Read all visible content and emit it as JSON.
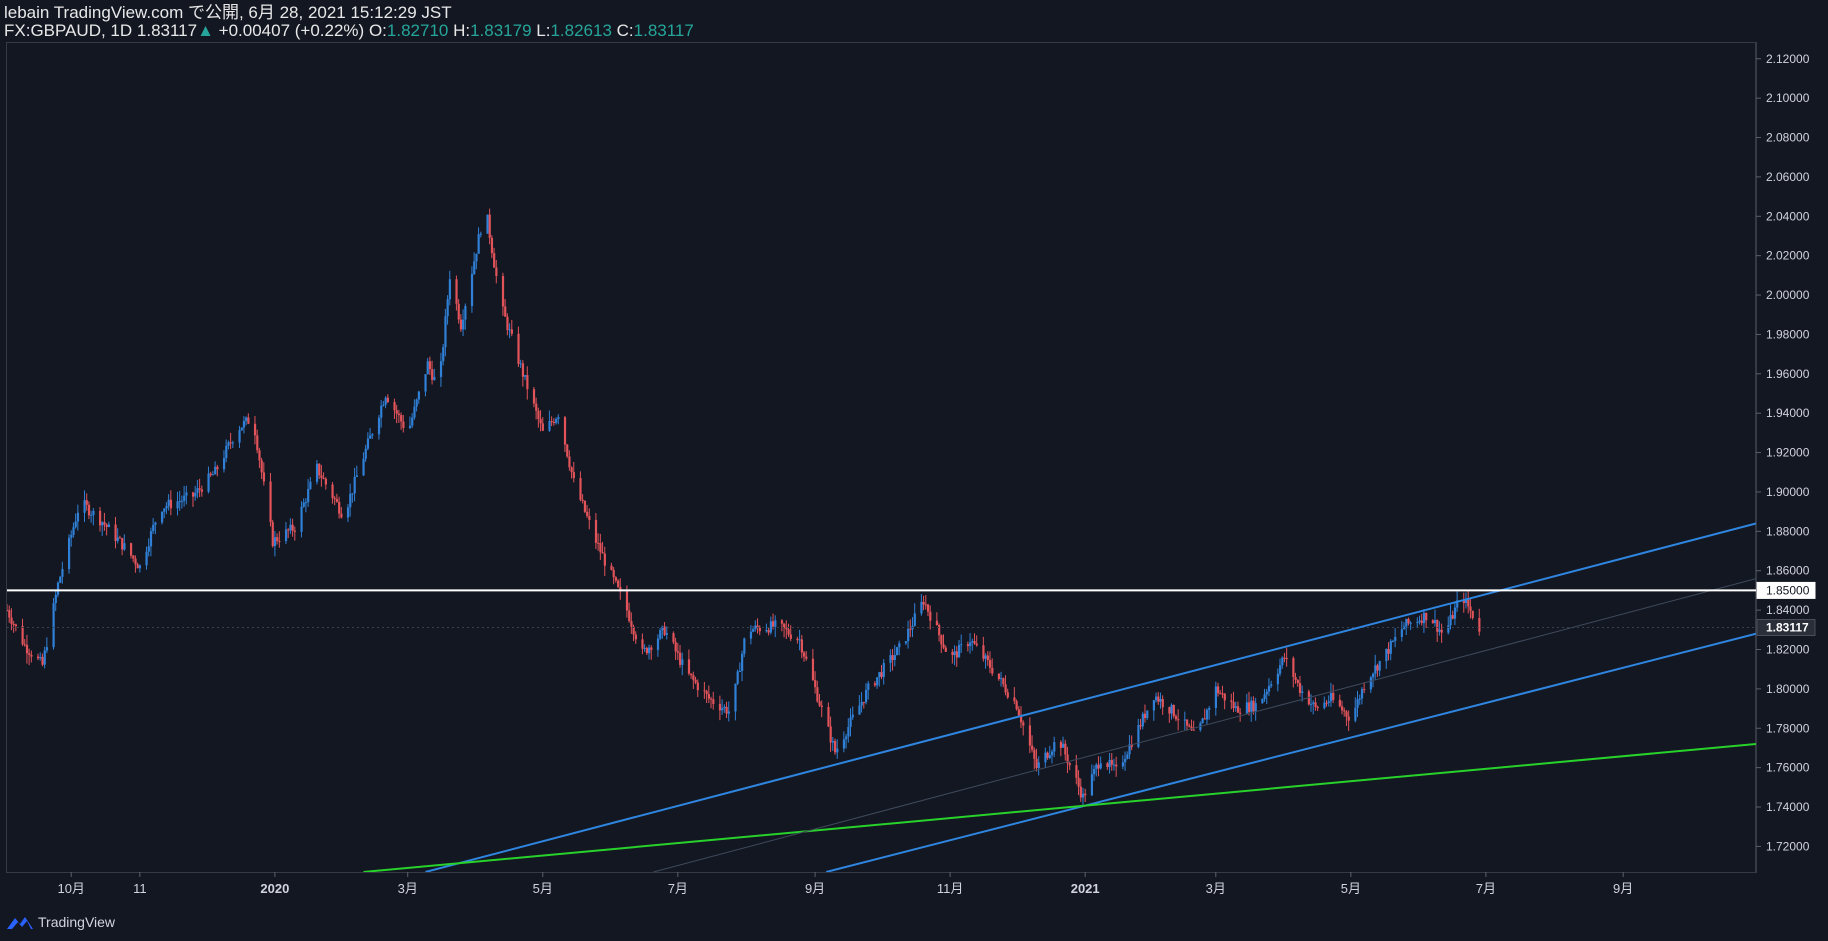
{
  "header": {
    "line1": "lebain TradingView.com で公開, 6月 28, 2021 15:12:29 JST",
    "symbol": "FX:GBPAUD, 1D",
    "last": "1.83117",
    "change_arrow": "▲",
    "change": "+0.00407 (+0.22%)",
    "o_label": "O:",
    "o": "1.82710",
    "h_label": "H:",
    "h": "1.83179",
    "l_label": "L:",
    "l": "1.82613",
    "c_label": "C:",
    "c": "1.83117"
  },
  "footer": {
    "brand": "TradingView",
    "logo_icon": "tradingview-logo-icon"
  },
  "colors": {
    "background": "#131722",
    "up": "#2f80d6",
    "down": "#e2535a",
    "channel": "#2f86e0",
    "support": "#27d22a",
    "level": "#ffffff",
    "grid": "#363a45",
    "text": "#d1d4dc",
    "value_green": "#26a69a"
  },
  "chart_data": {
    "type": "candlestick",
    "symbol": "GBPAUD",
    "interval": "1D",
    "title": "",
    "y_axis": {
      "range": [
        1.707,
        2.128
      ],
      "ticks": [
        "2.12000",
        "2.10000",
        "2.08000",
        "2.06000",
        "2.04000",
        "2.02000",
        "2.00000",
        "1.98000",
        "1.96000",
        "1.94000",
        "1.92000",
        "1.90000",
        "1.88000",
        "1.86000",
        "1.84000",
        "1.82000",
        "1.80000",
        "1.78000",
        "1.76000",
        "1.74000",
        "1.72000"
      ],
      "price_labels": [
        {
          "value": 1.85,
          "label": "1.85000",
          "style": "horizontal-level"
        },
        {
          "value": 1.83117,
          "label": "1.83117",
          "style": "last-price"
        }
      ]
    },
    "x_axis": {
      "range": [
        "2019-09-02",
        "2021-10-31"
      ],
      "ticks": [
        {
          "date": "2019-10-01",
          "label": "10月"
        },
        {
          "date": "2019-11-01",
          "label": "11"
        },
        {
          "date": "2020-01-01",
          "label": "2020"
        },
        {
          "date": "2020-03-01",
          "label": "3月"
        },
        {
          "date": "2020-05-01",
          "label": "5月"
        },
        {
          "date": "2020-07-01",
          "label": "7月"
        },
        {
          "date": "2020-09-01",
          "label": "9月"
        },
        {
          "date": "2020-11-01",
          "label": "11月"
        },
        {
          "date": "2021-01-01",
          "label": "2021"
        },
        {
          "date": "2021-03-01",
          "label": "3月"
        },
        {
          "date": "2021-05-01",
          "label": "5月"
        },
        {
          "date": "2021-07-01",
          "label": "7月"
        },
        {
          "date": "2021-09-01",
          "label": "9月"
        }
      ]
    },
    "price_path": [
      [
        "2019-09-02",
        1.84
      ],
      [
        "2019-09-10",
        1.822
      ],
      [
        "2019-09-18",
        1.812
      ],
      [
        "2019-09-25",
        1.853
      ],
      [
        "2019-10-05",
        1.895
      ],
      [
        "2019-10-15",
        1.885
      ],
      [
        "2019-10-25",
        1.872
      ],
      [
        "2019-11-01",
        1.862
      ],
      [
        "2019-11-10",
        1.892
      ],
      [
        "2019-11-25",
        1.898
      ],
      [
        "2019-12-05",
        1.91
      ],
      [
        "2019-12-15",
        1.932
      ],
      [
        "2019-12-22",
        1.938
      ],
      [
        "2019-12-31",
        1.875
      ],
      [
        "2020-01-10",
        1.882
      ],
      [
        "2020-01-20",
        1.912
      ],
      [
        "2020-02-01",
        1.888
      ],
      [
        "2020-02-10",
        1.918
      ],
      [
        "2020-02-20",
        1.95
      ],
      [
        "2020-03-01",
        1.93
      ],
      [
        "2020-03-10",
        1.965
      ],
      [
        "2020-03-15",
        1.952
      ],
      [
        "2020-03-20",
        2.01
      ],
      [
        "2020-03-25",
        1.985
      ],
      [
        "2020-04-05",
        2.045
      ],
      [
        "2020-04-12",
        1.995
      ],
      [
        "2020-04-22",
        1.96
      ],
      [
        "2020-05-01",
        1.93
      ],
      [
        "2020-05-08",
        1.94
      ],
      [
        "2020-05-15",
        1.905
      ],
      [
        "2020-05-25",
        1.875
      ],
      [
        "2020-06-08",
        1.84
      ],
      [
        "2020-06-15",
        1.818
      ],
      [
        "2020-06-25",
        1.83
      ],
      [
        "2020-07-05",
        1.808
      ],
      [
        "2020-07-15",
        1.795
      ],
      [
        "2020-07-25",
        1.788
      ],
      [
        "2020-08-01",
        1.83
      ],
      [
        "2020-08-15",
        1.832
      ],
      [
        "2020-08-25",
        1.825
      ],
      [
        "2020-09-10",
        1.768
      ],
      [
        "2020-09-25",
        1.8
      ],
      [
        "2020-10-10",
        1.822
      ],
      [
        "2020-10-20",
        1.845
      ],
      [
        "2020-11-01",
        1.815
      ],
      [
        "2020-11-10",
        1.825
      ],
      [
        "2020-11-20",
        1.81
      ],
      [
        "2020-12-01",
        1.792
      ],
      [
        "2020-12-10",
        1.76
      ],
      [
        "2020-12-20",
        1.775
      ],
      [
        "2020-12-31",
        1.745
      ],
      [
        "2021-01-08",
        1.765
      ],
      [
        "2021-01-15",
        1.758
      ],
      [
        "2021-01-25",
        1.78
      ],
      [
        "2021-02-01",
        1.797
      ],
      [
        "2021-02-10",
        1.788
      ],
      [
        "2021-02-20",
        1.775
      ],
      [
        "2021-03-01",
        1.8
      ],
      [
        "2021-03-10",
        1.79
      ],
      [
        "2021-03-20",
        1.792
      ],
      [
        "2021-04-01",
        1.816
      ],
      [
        "2021-04-08",
        1.8
      ],
      [
        "2021-04-15",
        1.79
      ],
      [
        "2021-04-22",
        1.795
      ],
      [
        "2021-05-01",
        1.785
      ],
      [
        "2021-05-08",
        1.805
      ],
      [
        "2021-05-15",
        1.815
      ],
      [
        "2021-05-25",
        1.832
      ],
      [
        "2021-06-05",
        1.838
      ],
      [
        "2021-06-12",
        1.827
      ],
      [
        "2021-06-20",
        1.848
      ],
      [
        "2021-06-28",
        1.831
      ]
    ],
    "trendlines": [
      {
        "role": "channel-upper",
        "color": "#2f86e0",
        "points": [
          [
            "2020-03-09",
            1.707
          ],
          [
            "2021-10-31",
            1.884
          ]
        ]
      },
      {
        "role": "channel-lower",
        "color": "#2f86e0",
        "points": [
          [
            "2020-09-06",
            1.707
          ],
          [
            "2021-10-31",
            1.828
          ]
        ]
      },
      {
        "role": "support",
        "color": "#27d22a",
        "points": [
          [
            "2020-02-10",
            1.707
          ],
          [
            "2021-10-31",
            1.772
          ]
        ]
      },
      {
        "role": "faint-midline",
        "color": "#3f4a5c",
        "points": [
          [
            "2020-06-20",
            1.707
          ],
          [
            "2021-10-31",
            1.856
          ]
        ]
      }
    ],
    "horizontal_levels": [
      {
        "value": 1.85,
        "label": "1.85000",
        "color": "#ffffff"
      }
    ]
  }
}
